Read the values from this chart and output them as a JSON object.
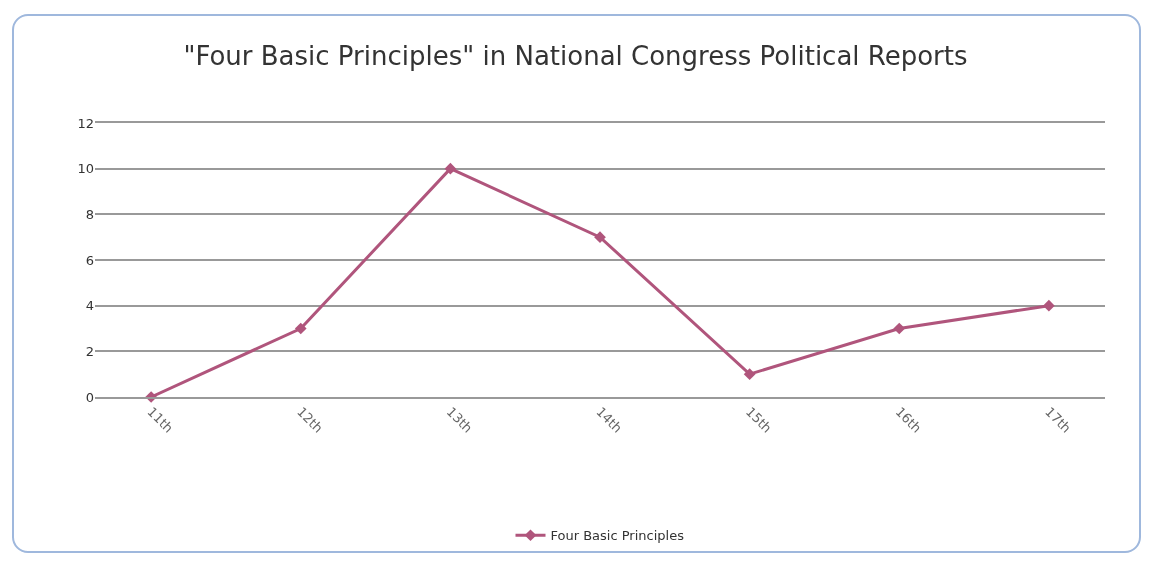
{
  "chart_data": {
    "type": "line",
    "title": "\"Four Basic Principles\" in National Congress Political Reports",
    "categories": [
      "11th",
      "12th",
      "13th",
      "14th",
      "15th",
      "16th",
      "17th"
    ],
    "series": [
      {
        "name": "Four Basic Principles",
        "color": "#b0557c",
        "values": [
          0,
          3,
          10,
          7,
          1,
          3,
          4
        ]
      }
    ],
    "ylim": [
      0,
      12
    ],
    "yticks": [
      0,
      2,
      4,
      6,
      8,
      10,
      12
    ],
    "grid": "y",
    "legend": "bottom",
    "marker": "diamond",
    "line_style": "solid"
  }
}
